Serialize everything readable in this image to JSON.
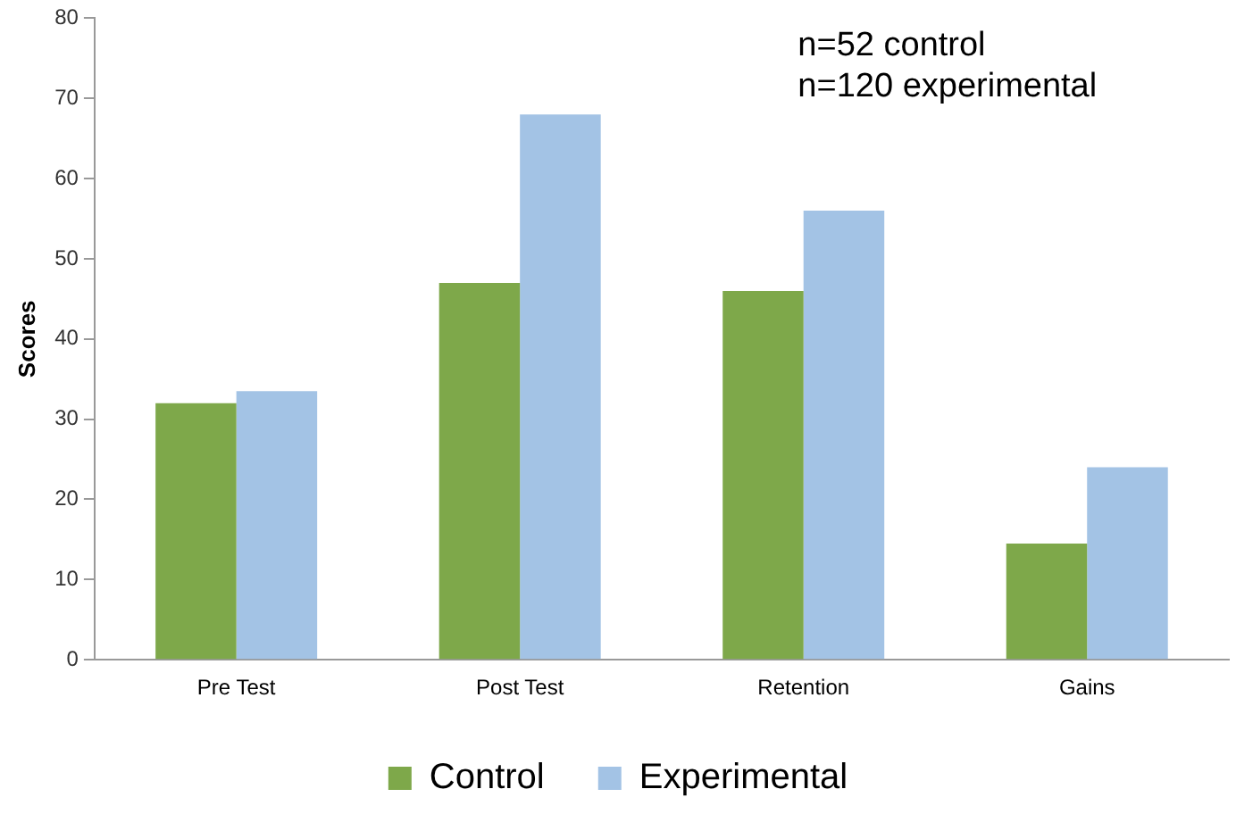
{
  "chart_data": {
    "type": "bar",
    "ylabel": "Scores",
    "categories": [
      "Pre Test",
      "Post Test",
      "Retention",
      "Gains"
    ],
    "series": [
      {
        "name": "Control",
        "color": "#7ea84a",
        "values": [
          32,
          47,
          46,
          14.5
        ]
      },
      {
        "name": "Experimental",
        "color": "#a3c3e5",
        "values": [
          33.5,
          68,
          56,
          24
        ]
      }
    ],
    "ylim": [
      0,
      80
    ],
    "yticks": [
      0,
      10,
      20,
      30,
      40,
      50,
      60,
      70,
      80
    ],
    "grid": false,
    "legend": "bottom",
    "annotations": [
      "n=52 control\nn=120 experimental"
    ]
  }
}
